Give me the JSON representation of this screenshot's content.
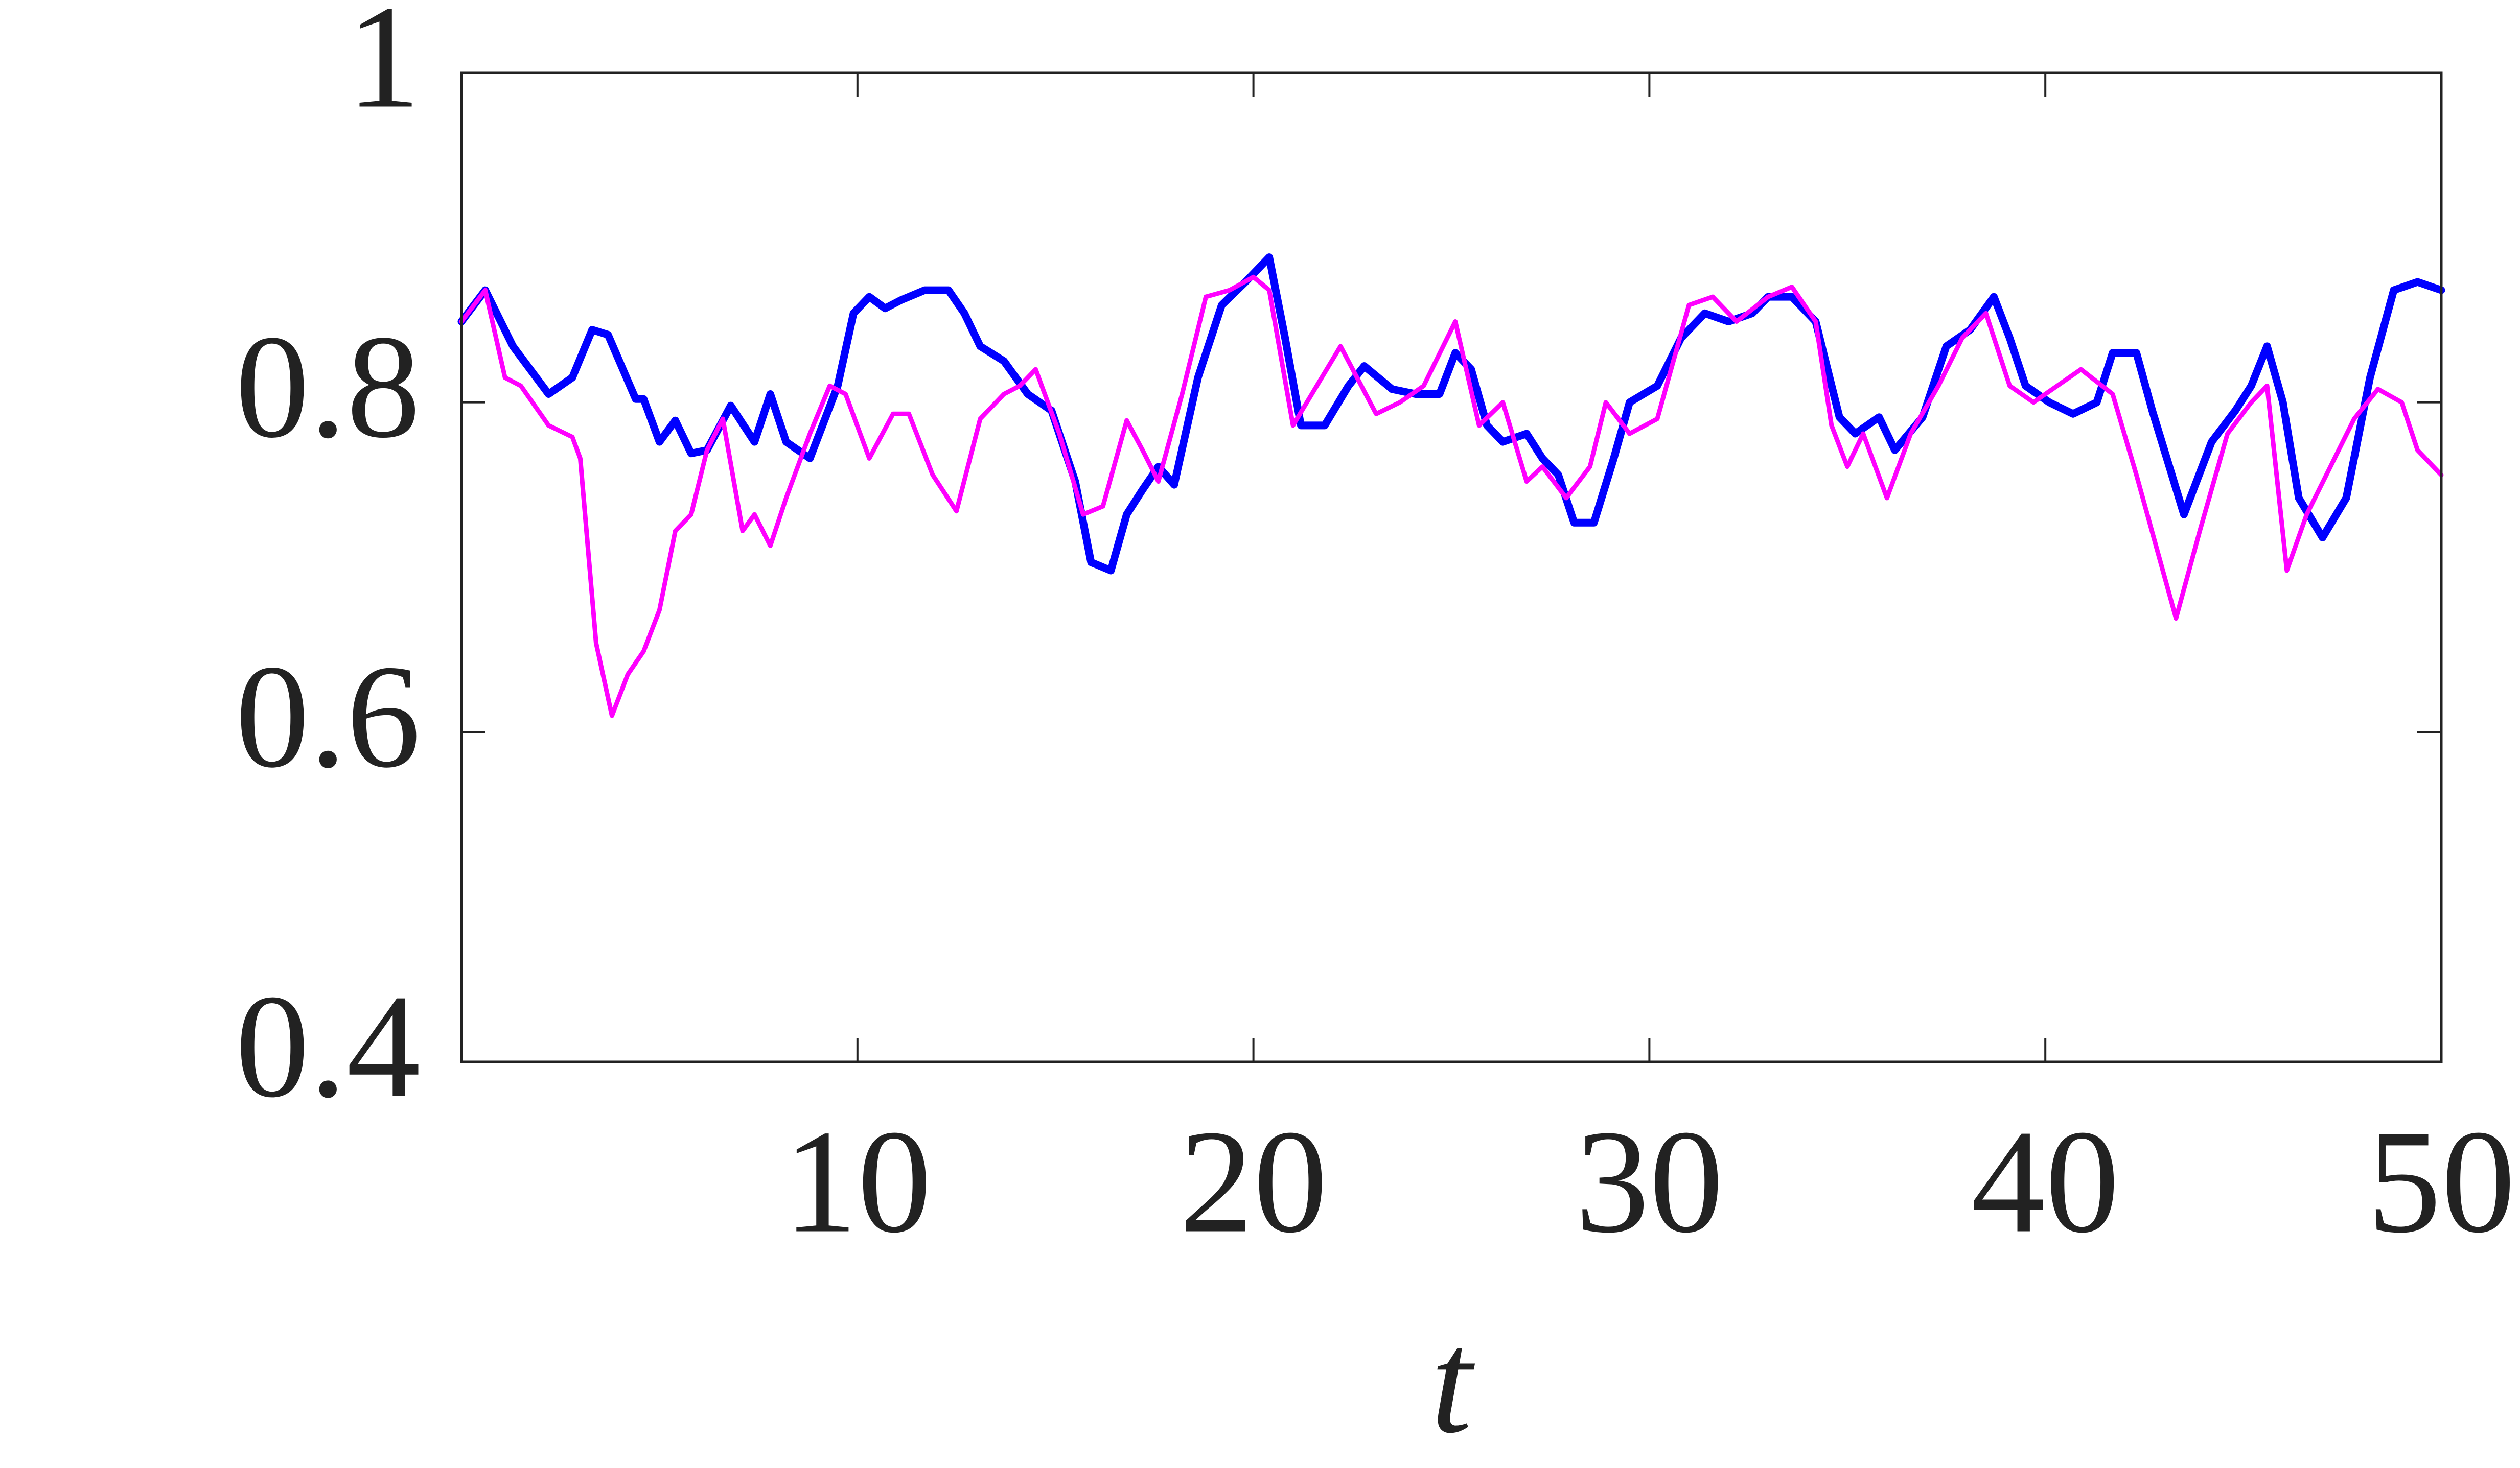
{
  "chart_data": {
    "type": "line",
    "xlabel": "t",
    "xlim": [
      0,
      50
    ],
    "ylim": [
      0.4,
      1
    ],
    "xticks": [
      10,
      20,
      30,
      40,
      50
    ],
    "yticks": [
      0.4,
      0.6,
      0.8,
      1
    ],
    "grid": false,
    "series": [
      {
        "color": "#0000ff",
        "x": [
          0,
          0.6,
          1.3,
          2.2,
          2.8,
          3.3,
          3.7,
          4.4,
          4.6,
          5.0,
          5.4,
          5.8,
          6.2,
          6.8,
          7.4,
          7.8,
          8.2,
          8.8,
          9.5,
          9.9,
          10.3,
          10.7,
          11.1,
          11.7,
          12.3,
          12.7,
          13.1,
          13.7,
          14.3,
          14.9,
          15.5,
          15.9,
          16.4,
          16.8,
          17.2,
          17.6,
          18.0,
          18.6,
          19.2,
          19.8,
          20.4,
          20.8,
          21.2,
          21.8,
          22.4,
          22.8,
          23.5,
          24.1,
          24.7,
          25.1,
          25.5,
          25.9,
          26.3,
          26.9,
          27.3,
          27.7,
          28.1,
          28.6,
          29.1,
          29.5,
          30.2,
          30.8,
          31.4,
          32.0,
          32.6,
          33.0,
          33.6,
          34.2,
          34.8,
          35.2,
          35.8,
          36.2,
          36.9,
          37.5,
          38.1,
          38.7,
          39.1,
          39.5,
          40.1,
          40.7,
          41.3,
          41.7,
          42.3,
          42.7,
          43.5,
          44.2,
          44.8,
          45.2,
          45.6,
          46.0,
          46.4,
          47.0,
          47.6,
          48.2,
          48.8,
          49.4,
          50.0
        ],
        "values": [
          0.849,
          0.868,
          0.834,
          0.805,
          0.815,
          0.844,
          0.841,
          0.802,
          0.802,
          0.776,
          0.789,
          0.769,
          0.771,
          0.798,
          0.776,
          0.805,
          0.776,
          0.766,
          0.81,
          0.854,
          0.864,
          0.857,
          0.862,
          0.868,
          0.868,
          0.854,
          0.834,
          0.825,
          0.805,
          0.795,
          0.752,
          0.703,
          0.698,
          0.732,
          0.747,
          0.761,
          0.75,
          0.815,
          0.859,
          0.873,
          0.888,
          0.839,
          0.786,
          0.786,
          0.81,
          0.822,
          0.808,
          0.805,
          0.805,
          0.83,
          0.82,
          0.786,
          0.776,
          0.781,
          0.766,
          0.756,
          0.727,
          0.727,
          0.766,
          0.8,
          0.81,
          0.839,
          0.854,
          0.849,
          0.854,
          0.864,
          0.864,
          0.849,
          0.791,
          0.781,
          0.791,
          0.771,
          0.791,
          0.834,
          0.844,
          0.864,
          0.839,
          0.81,
          0.8,
          0.793,
          0.8,
          0.83,
          0.83,
          0.795,
          0.732,
          0.776,
          0.795,
          0.81,
          0.834,
          0.8,
          0.742,
          0.718,
          0.742,
          0.815,
          0.868,
          0.873,
          0.868
        ]
      },
      {
        "color": "#ff00ff",
        "x": [
          0,
          0.6,
          1.1,
          1.5,
          2.2,
          2.8,
          3.0,
          3.4,
          3.8,
          4.2,
          4.6,
          5.0,
          5.4,
          5.8,
          6.2,
          6.6,
          7.1,
          7.4,
          7.8,
          8.2,
          8.8,
          9.3,
          9.7,
          10.3,
          10.9,
          11.3,
          11.9,
          12.5,
          13.1,
          13.7,
          14.1,
          14.5,
          15.1,
          15.7,
          16.2,
          16.8,
          17.2,
          17.6,
          18.2,
          18.8,
          19.4,
          20.0,
          20.4,
          21.0,
          21.6,
          22.2,
          23.1,
          23.7,
          24.3,
          25.1,
          25.7,
          26.3,
          26.9,
          27.3,
          27.9,
          28.5,
          28.9,
          29.5,
          30.2,
          31.0,
          31.6,
          32.2,
          33.0,
          33.6,
          34.2,
          34.6,
          35.0,
          35.4,
          36.0,
          36.6,
          37.3,
          37.9,
          38.5,
          39.1,
          39.7,
          40.3,
          40.9,
          41.7,
          42.3,
          43.3,
          43.9,
          44.6,
          45.2,
          45.6,
          46.1,
          46.6,
          47.2,
          47.8,
          48.4,
          49.0,
          49.4,
          50.0
        ],
        "values": [
          0.849,
          0.868,
          0.815,
          0.81,
          0.786,
          0.779,
          0.766,
          0.654,
          0.61,
          0.635,
          0.649,
          0.674,
          0.722,
          0.732,
          0.771,
          0.79,
          0.722,
          0.732,
          0.713,
          0.742,
          0.781,
          0.81,
          0.805,
          0.766,
          0.793,
          0.793,
          0.756,
          0.734,
          0.79,
          0.805,
          0.81,
          0.82,
          0.781,
          0.732,
          0.737,
          0.789,
          0.771,
          0.752,
          0.805,
          0.864,
          0.868,
          0.876,
          0.868,
          0.786,
          0.81,
          0.834,
          0.793,
          0.8,
          0.81,
          0.849,
          0.786,
          0.8,
          0.752,
          0.761,
          0.742,
          0.761,
          0.8,
          0.781,
          0.79,
          0.859,
          0.864,
          0.849,
          0.864,
          0.87,
          0.849,
          0.786,
          0.761,
          0.781,
          0.742,
          0.781,
          0.81,
          0.839,
          0.854,
          0.81,
          0.8,
          0.81,
          0.82,
          0.805,
          0.756,
          0.669,
          0.722,
          0.781,
          0.8,
          0.81,
          0.698,
          0.732,
          0.761,
          0.79,
          0.808,
          0.8,
          0.771,
          0.756
        ]
      }
    ]
  }
}
